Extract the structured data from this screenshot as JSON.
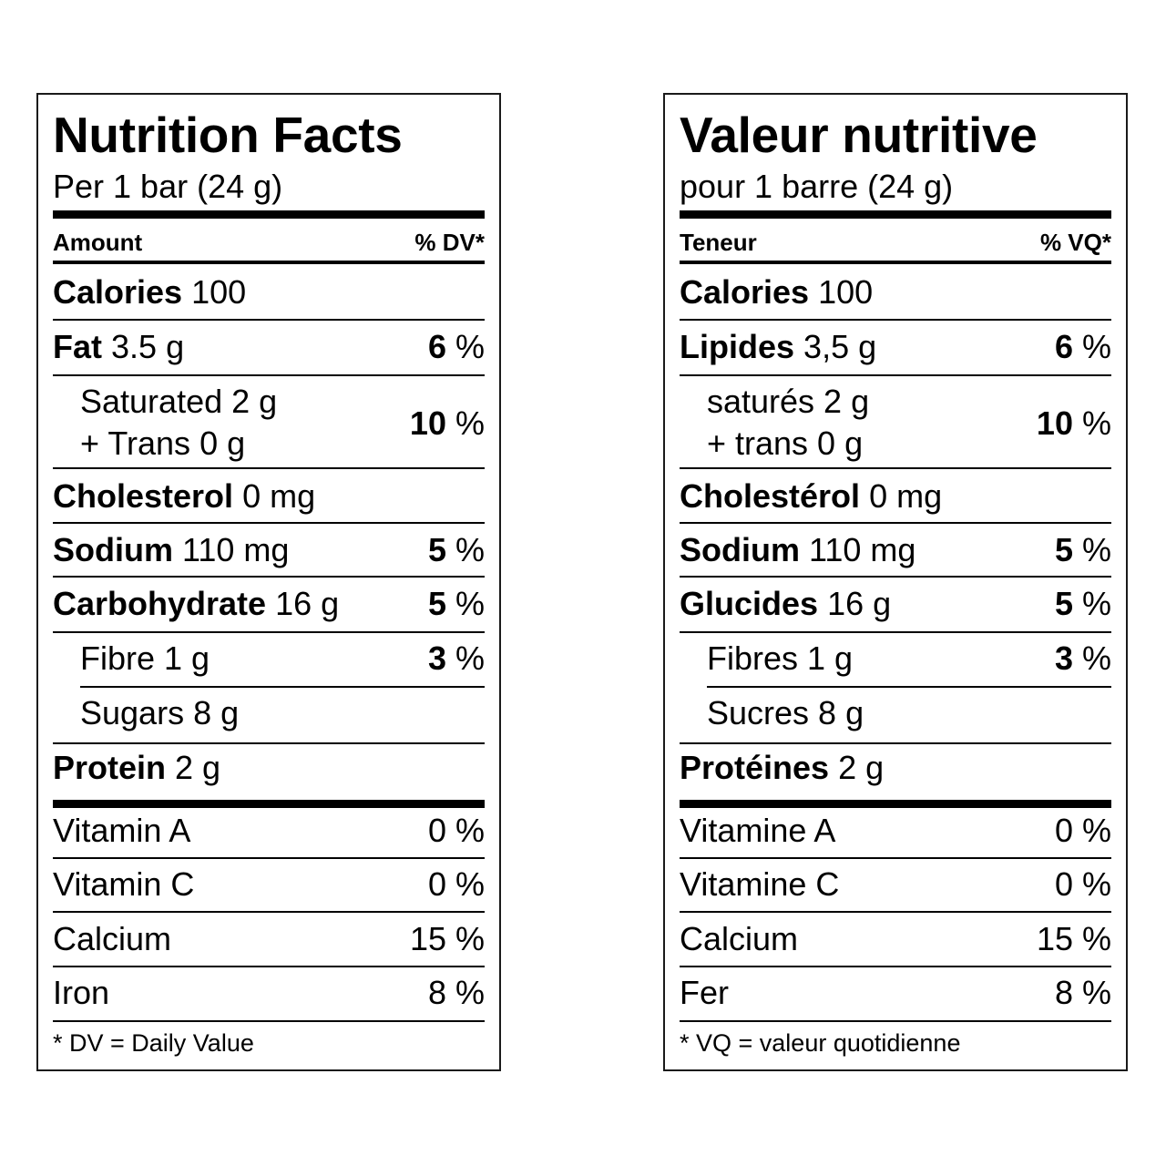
{
  "en": {
    "title": "Nutrition Facts",
    "serving": "Per 1 bar (24 g)",
    "amount_header": "Amount",
    "dv_header": "% DV*",
    "calories_label": "Calories",
    "calories_value": "100",
    "fat_label": "Fat",
    "fat_amount": "3.5 g",
    "fat_dv_num": "6",
    "saturated_line": "Saturated 2 g",
    "trans_line": "+ Trans 0 g",
    "sat_trans_dv_num": "10",
    "cholesterol_label": "Cholesterol",
    "cholesterol_amount": "0 mg",
    "sodium_label": "Sodium",
    "sodium_amount": "110 mg",
    "sodium_dv_num": "5",
    "carb_label": "Carbohydrate",
    "carb_amount": "16 g",
    "carb_dv_num": "5",
    "fibre_line": "Fibre 1 g",
    "fibre_dv_num": "3",
    "sugars_line": "Sugars 8 g",
    "protein_label": "Protein",
    "protein_amount": "2 g",
    "vit_a_label": "Vitamin A",
    "vit_a_dv": "0 %",
    "vit_c_label": "Vitamin C",
    "vit_c_dv": "0 %",
    "calcium_label": "Calcium",
    "calcium_dv": "15 %",
    "iron_label": "Iron",
    "iron_dv": "8 %",
    "footnote": "* DV = Daily Value"
  },
  "fr": {
    "title": "Valeur nutritive",
    "serving": "pour 1 barre (24 g)",
    "amount_header": "Teneur",
    "dv_header": "% VQ*",
    "calories_label": "Calories",
    "calories_value": "100",
    "fat_label": "Lipides",
    "fat_amount": "3,5 g",
    "fat_dv_num": "6",
    "saturated_line": "saturés 2 g",
    "trans_line": "+ trans 0 g",
    "sat_trans_dv_num": "10",
    "cholesterol_label": "Cholestérol",
    "cholesterol_amount": "0 mg",
    "sodium_label": "Sodium",
    "sodium_amount": "110 mg",
    "sodium_dv_num": "5",
    "carb_label": "Glucides",
    "carb_amount": "16 g",
    "carb_dv_num": "5",
    "fibre_line": "Fibres 1 g",
    "fibre_dv_num": "3",
    "sugars_line": "Sucres 8 g",
    "protein_label": "Protéines",
    "protein_amount": "2 g",
    "vit_a_label": "Vitamine A",
    "vit_a_dv": "0 %",
    "vit_c_label": "Vitamine C",
    "vit_c_dv": "0 %",
    "calcium_label": "Calcium",
    "calcium_dv": "15 %",
    "iron_label": "Fer",
    "iron_dv": "8 %",
    "footnote": "* VQ = valeur quotidienne"
  },
  "percent_sign": "%"
}
